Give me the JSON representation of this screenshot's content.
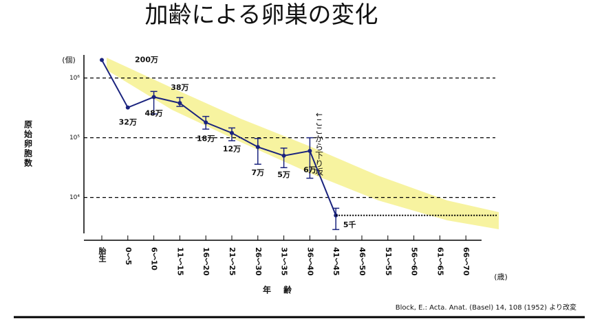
{
  "chart_data": {
    "type": "line",
    "title": "加齢による卵巣の変化",
    "y_label": "原始卵胞数",
    "y_unit": "(個)",
    "x_label": "年齢",
    "x_unit": "(歳)",
    "source": "Block, E.: Acta. Anat. (Basel) 14, 108 (1952) より改変",
    "annotation": "↓ここから下り坂",
    "log_scale": true,
    "grid": true,
    "categories": [
      "胎生",
      "0〜5",
      "6〜10",
      "11〜15",
      "16〜20",
      "21〜25",
      "26〜30",
      "31〜35",
      "36〜40",
      "41〜45",
      "46〜50",
      "51〜55",
      "56〜60",
      "61〜65",
      "66〜70"
    ],
    "series": [
      {
        "name": "原始卵胞数",
        "color": "#1a237e",
        "values": [
          2000000,
          320000,
          480000,
          380000,
          180000,
          120000,
          70000,
          50000,
          60000,
          5000,
          null,
          null,
          null,
          null,
          null
        ],
        "value_labels": [
          "200万",
          "32万",
          "48万",
          "38万",
          "18万",
          "12万",
          "7万",
          "5万",
          "6万",
          "5千",
          null,
          null,
          null,
          null,
          null
        ],
        "error_low": [
          null,
          null,
          250000,
          335000,
          139000,
          89000,
          36000,
          31500,
          21000,
          2900,
          null,
          null,
          null,
          null,
          null
        ],
        "error_high": [
          null,
          null,
          594000,
          470000,
          227000,
          146000,
          97000,
          67000,
          100000,
          6600,
          null,
          null,
          null,
          null,
          null
        ]
      }
    ],
    "ylim": [
      2500,
      2500000
    ],
    "yticks": [
      {
        "value": 10000,
        "label": "10⁴"
      },
      {
        "value": 100000,
        "label": "10⁵"
      },
      {
        "value": 1000000,
        "label": "10⁶"
      }
    ]
  }
}
